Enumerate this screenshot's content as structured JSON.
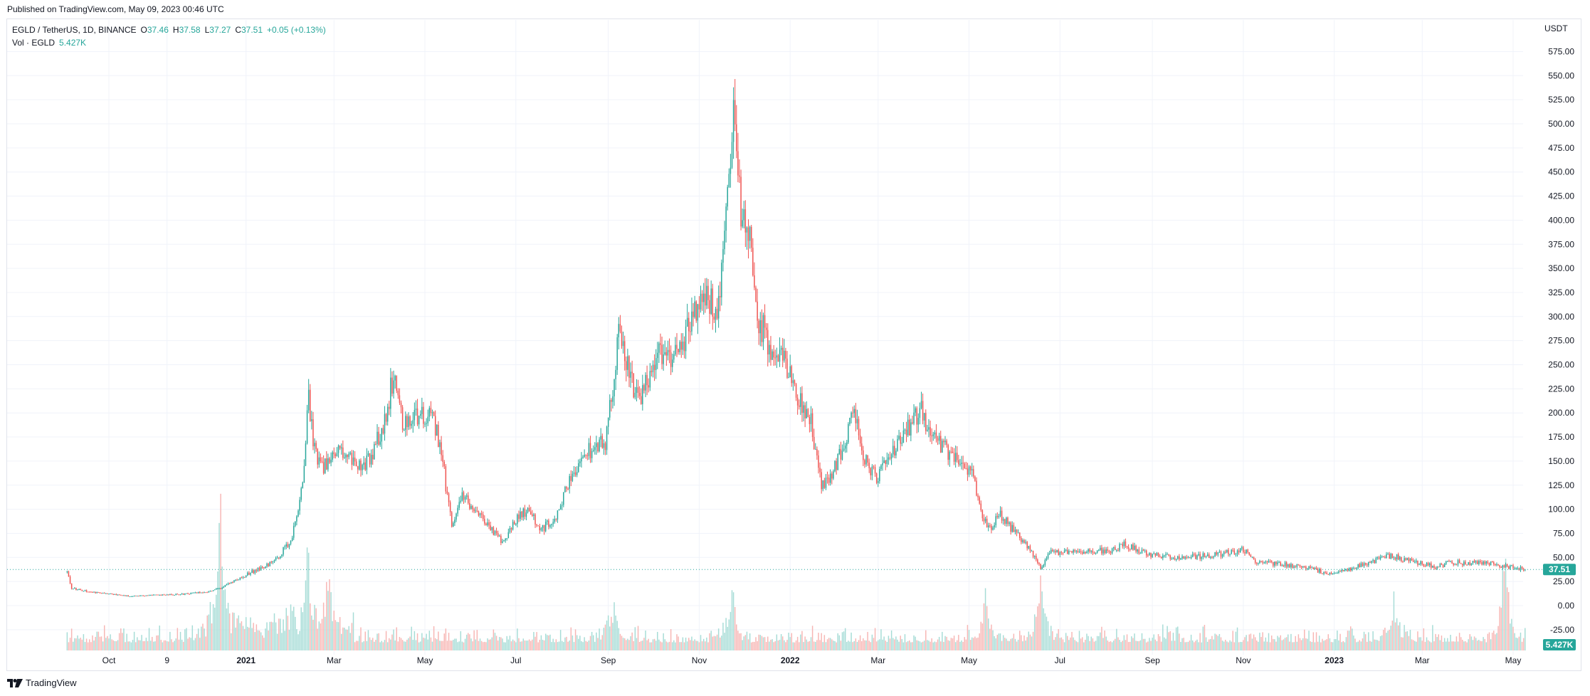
{
  "header": {
    "published": "Published on TradingView.com, May 09, 2023 00:46 UTC"
  },
  "legend": {
    "symbol": "EGLD / TetherUS, 1D, BINANCE",
    "o_label": "O",
    "o_value": "37.46",
    "h_label": "H",
    "h_value": "37.58",
    "l_label": "L",
    "l_value": "37.27",
    "c_label": "C",
    "c_value": "37.51",
    "change": "+0.05 (+0.13%)",
    "vol_label": "Vol · EGLD",
    "vol_value": "5.427K"
  },
  "price_axis": {
    "currency": "USDT",
    "ticks": [
      "575.00",
      "550.00",
      "525.00",
      "500.00",
      "475.00",
      "450.00",
      "425.00",
      "400.00",
      "375.00",
      "350.00",
      "325.00",
      "300.00",
      "275.00",
      "250.00",
      "225.00",
      "200.00",
      "175.00",
      "150.00",
      "125.00",
      "100.00",
      "75.00",
      "50.00",
      "25.00",
      "0.00",
      "-25.00"
    ],
    "last_price_label": "37.51",
    "volume_label": "5.427K"
  },
  "time_axis": {
    "labels": [
      "Oct",
      "9",
      "2021",
      "Mar",
      "May",
      "Jul",
      "Sep",
      "Nov",
      "2022",
      "Mar",
      "May",
      "Jul",
      "Sep",
      "Nov",
      "2023",
      "Mar",
      "May"
    ]
  },
  "footer": {
    "brand": "TradingView"
  },
  "colors": {
    "up": "#26a69a",
    "down": "#ef5350",
    "up_volume": "#a6dcd6",
    "down_volume": "#f7b6b4",
    "grid": "#f0f3fa",
    "last_price": "#26a69a"
  },
  "chart_data": {
    "type": "candlestick",
    "symbol": "EGLD / TetherUS",
    "interval": "1D",
    "exchange": "BINANCE",
    "currency": "USDT",
    "ylim": [
      -40,
      585
    ],
    "last_price": 37.51,
    "start_date": "2020-09-03",
    "end_date": "2023-05-09",
    "price_path": [
      [
        "2020-09-03",
        35
      ],
      [
        "2020-09-06",
        18
      ],
      [
        "2020-09-20",
        14
      ],
      [
        "2020-10-15",
        10
      ],
      [
        "2020-11-05",
        11
      ],
      [
        "2020-11-20",
        12
      ],
      [
        "2020-12-05",
        14
      ],
      [
        "2020-12-15",
        18
      ],
      [
        "2020-12-25",
        27
      ],
      [
        "2021-01-05",
        35
      ],
      [
        "2021-01-20",
        45
      ],
      [
        "2021-02-01",
        70
      ],
      [
        "2021-02-08",
        130
      ],
      [
        "2021-02-12",
        215
      ],
      [
        "2021-02-16",
        160
      ],
      [
        "2021-02-22",
        145
      ],
      [
        "2021-03-05",
        160
      ],
      [
        "2021-03-20",
        140
      ],
      [
        "2021-04-02",
        180
      ],
      [
        "2021-04-11",
        245
      ],
      [
        "2021-04-16",
        190
      ],
      [
        "2021-04-27",
        200
      ],
      [
        "2021-05-05",
        200
      ],
      [
        "2021-05-12",
        160
      ],
      [
        "2021-05-19",
        80
      ],
      [
        "2021-05-25",
        115
      ],
      [
        "2021-06-10",
        90
      ],
      [
        "2021-06-22",
        65
      ],
      [
        "2021-07-02",
        90
      ],
      [
        "2021-07-09",
        100
      ],
      [
        "2021-07-18",
        80
      ],
      [
        "2021-07-28",
        90
      ],
      [
        "2021-08-08",
        140
      ],
      [
        "2021-08-18",
        160
      ],
      [
        "2021-08-30",
        170
      ],
      [
        "2021-09-05",
        240
      ],
      [
        "2021-09-08",
        290
      ],
      [
        "2021-09-15",
        240
      ],
      [
        "2021-09-22",
        210
      ],
      [
        "2021-10-02",
        260
      ],
      [
        "2021-10-12",
        250
      ],
      [
        "2021-10-25",
        290
      ],
      [
        "2021-11-05",
        320
      ],
      [
        "2021-11-14",
        310
      ],
      [
        "2021-11-22",
        480
      ],
      [
        "2021-11-24",
        505
      ],
      [
        "2021-11-29",
        400
      ],
      [
        "2021-12-06",
        380
      ],
      [
        "2021-12-10",
        300
      ],
      [
        "2021-12-20",
        265
      ],
      [
        "2021-12-28",
        260
      ],
      [
        "2022-01-05",
        220
      ],
      [
        "2022-01-15",
        190
      ],
      [
        "2022-01-22",
        125
      ],
      [
        "2022-02-01",
        145
      ],
      [
        "2022-02-08",
        180
      ],
      [
        "2022-02-13",
        205
      ],
      [
        "2022-02-20",
        150
      ],
      [
        "2022-02-28",
        135
      ],
      [
        "2022-03-06",
        145
      ],
      [
        "2022-03-18",
        175
      ],
      [
        "2022-03-29",
        205
      ],
      [
        "2022-04-05",
        180
      ],
      [
        "2022-04-12",
        165
      ],
      [
        "2022-04-25",
        150
      ],
      [
        "2022-05-03",
        140
      ],
      [
        "2022-05-10",
        95
      ],
      [
        "2022-05-15",
        80
      ],
      [
        "2022-05-22",
        95
      ],
      [
        "2022-06-01",
        75
      ],
      [
        "2022-06-10",
        60
      ],
      [
        "2022-06-18",
        40
      ],
      [
        "2022-06-25",
        55
      ],
      [
        "2022-07-15",
        55
      ],
      [
        "2022-08-05",
        58
      ],
      [
        "2022-08-14",
        64
      ],
      [
        "2022-08-25",
        55
      ],
      [
        "2022-09-15",
        50
      ],
      [
        "2022-10-10",
        52
      ],
      [
        "2022-11-03",
        58
      ],
      [
        "2022-11-09",
        45
      ],
      [
        "2022-11-20",
        44
      ],
      [
        "2022-12-15",
        40
      ],
      [
        "2022-12-28",
        32
      ],
      [
        "2023-01-10",
        38
      ],
      [
        "2023-01-25",
        45
      ],
      [
        "2023-02-08",
        52
      ],
      [
        "2023-02-22",
        46
      ],
      [
        "2023-03-10",
        40
      ],
      [
        "2023-03-20",
        45
      ],
      [
        "2023-04-05",
        44
      ],
      [
        "2023-04-19",
        43
      ],
      [
        "2023-04-25",
        41
      ],
      [
        "2023-05-09",
        37.5
      ]
    ],
    "volume_spikes": [
      [
        "2020-12-15",
        0.85
      ],
      [
        "2021-02-11",
        0.7
      ],
      [
        "2021-02-25",
        0.4
      ],
      [
        "2021-09-05",
        0.35
      ],
      [
        "2021-11-23",
        0.45
      ],
      [
        "2022-05-12",
        0.35
      ],
      [
        "2022-06-18",
        0.5
      ],
      [
        "2023-02-10",
        0.3
      ],
      [
        "2023-04-25",
        0.75
      ]
    ]
  }
}
